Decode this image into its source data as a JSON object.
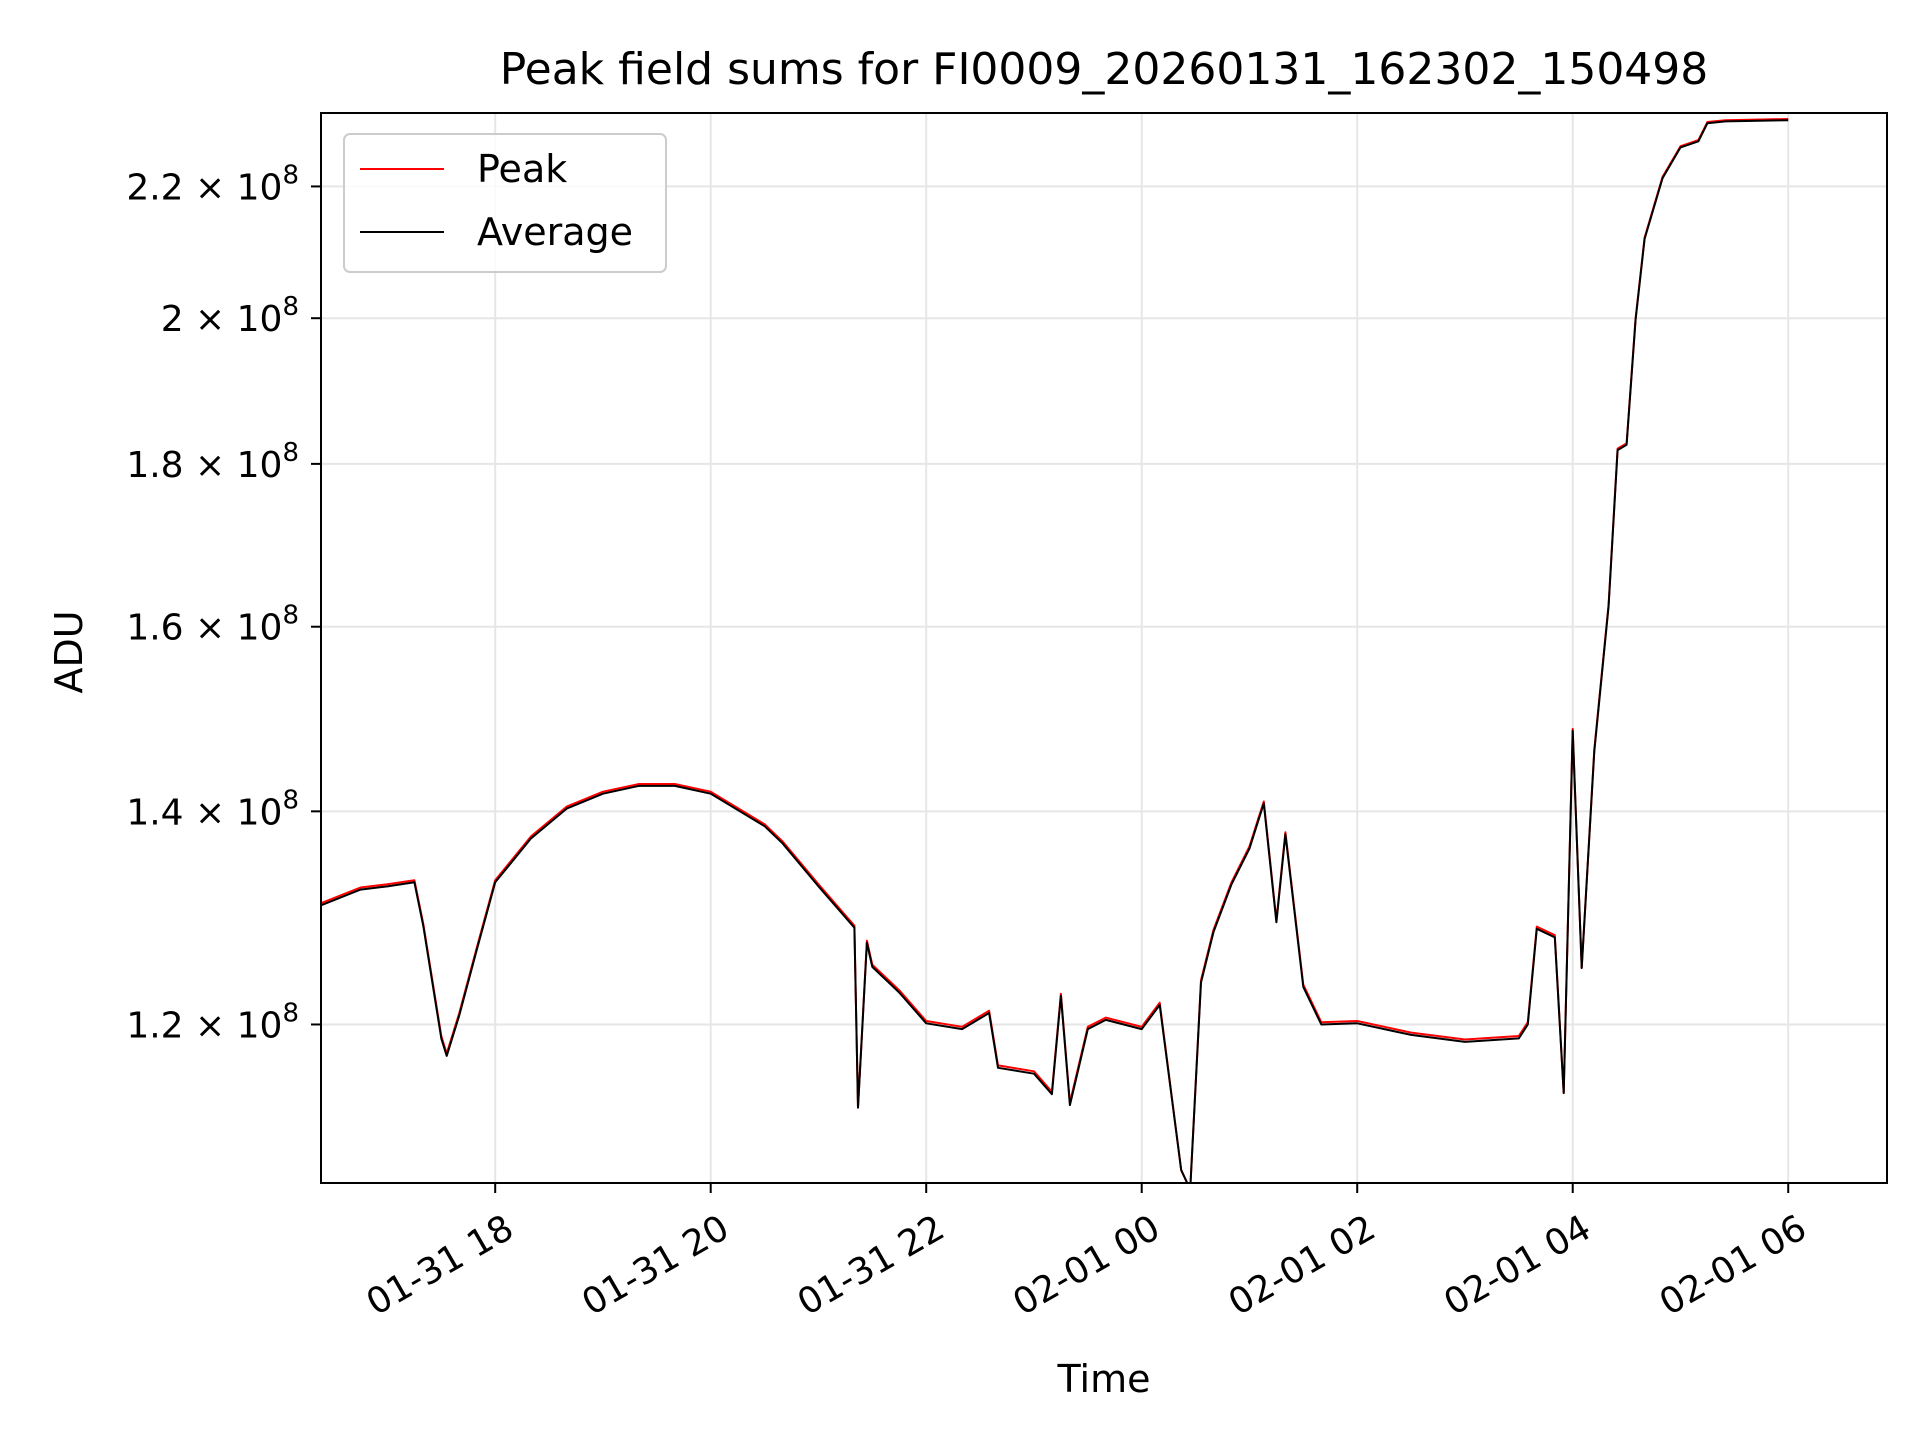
{
  "chart_data": {
    "type": "line",
    "title": "Peak field sums for FI0009_20260131_162302_150498",
    "xlabel": "Time",
    "ylabel": "ADU",
    "y_scale": "log",
    "grid": true,
    "legend_position": "top-left",
    "xlim": [
      "2026-01-31 16:23",
      "2026-02-01 06:55"
    ],
    "ylim": [
      107000000,
      232000000
    ],
    "x_ticks": [
      {
        "value": "2026-01-31 18:00",
        "label": "01-31 18"
      },
      {
        "value": "2026-01-31 20:00",
        "label": "01-31 20"
      },
      {
        "value": "2026-01-31 22:00",
        "label": "01-31 22"
      },
      {
        "value": "2026-02-01 00:00",
        "label": "02-01 00"
      },
      {
        "value": "2026-02-01 02:00",
        "label": "02-01 02"
      },
      {
        "value": "2026-02-01 04:00",
        "label": "02-01 04"
      },
      {
        "value": "2026-02-01 06:00",
        "label": "02-01 06"
      }
    ],
    "y_ticks": [
      {
        "value": 120000000,
        "mantissa": "1.2",
        "base": "10",
        "exp": "8"
      },
      {
        "value": 140000000,
        "mantissa": "1.4",
        "base": "10",
        "exp": "8"
      },
      {
        "value": 160000000,
        "mantissa": "1.6",
        "base": "10",
        "exp": "8"
      },
      {
        "value": 180000000,
        "mantissa": "1.8",
        "base": "10",
        "exp": "8"
      },
      {
        "value": 200000000,
        "mantissa": "2",
        "base": "10",
        "exp": "8"
      },
      {
        "value": 220000000,
        "mantissa": "2.2",
        "base": "10",
        "exp": "8"
      }
    ],
    "series": [
      {
        "name": "Peak",
        "color": "#ff0000",
        "x": [
          "2026-01-31 16:23",
          "2026-01-31 16:45",
          "2026-01-31 17:00",
          "2026-01-31 17:15",
          "2026-01-31 17:20",
          "2026-01-31 17:30",
          "2026-01-31 17:33",
          "2026-01-31 17:40",
          "2026-01-31 17:50",
          "2026-01-31 18:00",
          "2026-01-31 18:20",
          "2026-01-31 18:40",
          "2026-01-31 19:00",
          "2026-01-31 19:20",
          "2026-01-31 19:40",
          "2026-01-31 20:00",
          "2026-01-31 20:30",
          "2026-01-31 20:40",
          "2026-01-31 21:00",
          "2026-01-31 21:20",
          "2026-01-31 21:22",
          "2026-01-31 21:27",
          "2026-01-31 21:30",
          "2026-01-31 21:45",
          "2026-01-31 22:00",
          "2026-01-31 22:20",
          "2026-01-31 22:35",
          "2026-01-31 22:40",
          "2026-01-31 23:00",
          "2026-01-31 23:10",
          "2026-01-31 23:15",
          "2026-01-31 23:20",
          "2026-01-31 23:30",
          "2026-01-31 23:40",
          "2026-02-01 00:00",
          "2026-02-01 00:10",
          "2026-02-01 00:22",
          "2026-02-01 00:27",
          "2026-02-01 00:33",
          "2026-02-01 00:40",
          "2026-02-01 00:50",
          "2026-02-01 01:00",
          "2026-02-01 01:05",
          "2026-02-01 01:08",
          "2026-02-01 01:15",
          "2026-02-01 01:20",
          "2026-02-01 01:30",
          "2026-02-01 01:40",
          "2026-02-01 02:00",
          "2026-02-01 02:30",
          "2026-02-01 03:00",
          "2026-02-01 03:30",
          "2026-02-01 03:35",
          "2026-02-01 03:40",
          "2026-02-01 03:50",
          "2026-02-01 03:55",
          "2026-02-01 04:00",
          "2026-02-01 04:05",
          "2026-02-01 04:12",
          "2026-02-01 04:20",
          "2026-02-01 04:25",
          "2026-02-01 04:30",
          "2026-02-01 04:35",
          "2026-02-01 04:40",
          "2026-02-01 04:50",
          "2026-02-01 05:00",
          "2026-02-01 05:10",
          "2026-02-01 05:15",
          "2026-02-01 05:25",
          "2026-02-01 06:00"
        ],
        "y": [
          131000000,
          132500000,
          132800000,
          133200000,
          129000000,
          119000000,
          117500000,
          121000000,
          127000000,
          133200000,
          137500000,
          140500000,
          142000000,
          142800000,
          142800000,
          142000000,
          138700000,
          137000000,
          132800000,
          128900000,
          113000000,
          127500000,
          125300000,
          123000000,
          120300000,
          119800000,
          121200000,
          116500000,
          116000000,
          114300000,
          122700000,
          113400000,
          119800000,
          120600000,
          119800000,
          121900000,
          108000000,
          106500000,
          123900000,
          128500000,
          133000000,
          136500000,
          139300000,
          141000000,
          129400000,
          137900000,
          123500000,
          120200000,
          120300000,
          119300000,
          118700000,
          119000000,
          120200000,
          128800000,
          128000000,
          114200000,
          148600000,
          125000000,
          146400000,
          162600000,
          182000000,
          182700000,
          200000000,
          212000000,
          221500000,
          226500000,
          227500000,
          230500000,
          230800000,
          231000000
        ]
      },
      {
        "name": "Average",
        "color": "#000000",
        "x": [
          "2026-01-31 16:23",
          "2026-01-31 16:45",
          "2026-01-31 17:00",
          "2026-01-31 17:15",
          "2026-01-31 17:20",
          "2026-01-31 17:30",
          "2026-01-31 17:33",
          "2026-01-31 17:40",
          "2026-01-31 17:50",
          "2026-01-31 18:00",
          "2026-01-31 18:20",
          "2026-01-31 18:40",
          "2026-01-31 19:00",
          "2026-01-31 19:20",
          "2026-01-31 19:40",
          "2026-01-31 20:00",
          "2026-01-31 20:30",
          "2026-01-31 20:40",
          "2026-01-31 21:00",
          "2026-01-31 21:20",
          "2026-01-31 21:22",
          "2026-01-31 21:27",
          "2026-01-31 21:30",
          "2026-01-31 21:45",
          "2026-01-31 22:00",
          "2026-01-31 22:20",
          "2026-01-31 22:35",
          "2026-01-31 22:40",
          "2026-01-31 23:00",
          "2026-01-31 23:10",
          "2026-01-31 23:15",
          "2026-01-31 23:20",
          "2026-01-31 23:30",
          "2026-01-31 23:40",
          "2026-02-01 00:00",
          "2026-02-01 00:10",
          "2026-02-01 00:22",
          "2026-02-01 00:27",
          "2026-02-01 00:33",
          "2026-02-01 00:40",
          "2026-02-01 00:50",
          "2026-02-01 01:00",
          "2026-02-01 01:05",
          "2026-02-01 01:08",
          "2026-02-01 01:15",
          "2026-02-01 01:20",
          "2026-02-01 01:30",
          "2026-02-01 01:40",
          "2026-02-01 02:00",
          "2026-02-01 02:30",
          "2026-02-01 03:00",
          "2026-02-01 03:30",
          "2026-02-01 03:35",
          "2026-02-01 03:40",
          "2026-02-01 03:50",
          "2026-02-01 03:55",
          "2026-02-01 04:00",
          "2026-02-01 04:05",
          "2026-02-01 04:12",
          "2026-02-01 04:20",
          "2026-02-01 04:25",
          "2026-02-01 04:30",
          "2026-02-01 04:35",
          "2026-02-01 04:40",
          "2026-02-01 04:50",
          "2026-02-01 05:00",
          "2026-02-01 05:10",
          "2026-02-01 05:15",
          "2026-02-01 05:25",
          "2026-02-01 06:00"
        ],
        "y": [
          130800000,
          132300000,
          132600000,
          133000000,
          128800000,
          118800000,
          117300000,
          120800000,
          126800000,
          133000000,
          137300000,
          140300000,
          141800000,
          142600000,
          142600000,
          141800000,
          138500000,
          136800000,
          132600000,
          128700000,
          113000000,
          127300000,
          125100000,
          122800000,
          120100000,
          119600000,
          121000000,
          116300000,
          115800000,
          114100000,
          122500000,
          113200000,
          119600000,
          120400000,
          119600000,
          121700000,
          108000000,
          106500000,
          123700000,
          128300000,
          132800000,
          136300000,
          139100000,
          140800000,
          129200000,
          137700000,
          123300000,
          120000000,
          120100000,
          119100000,
          118500000,
          118800000,
          120000000,
          128600000,
          127800000,
          114200000,
          148400000,
          125000000,
          146200000,
          162400000,
          181800000,
          182500000,
          199800000,
          211800000,
          221300000,
          226300000,
          227300000,
          230300000,
          230600000,
          230800000
        ]
      }
    ]
  }
}
